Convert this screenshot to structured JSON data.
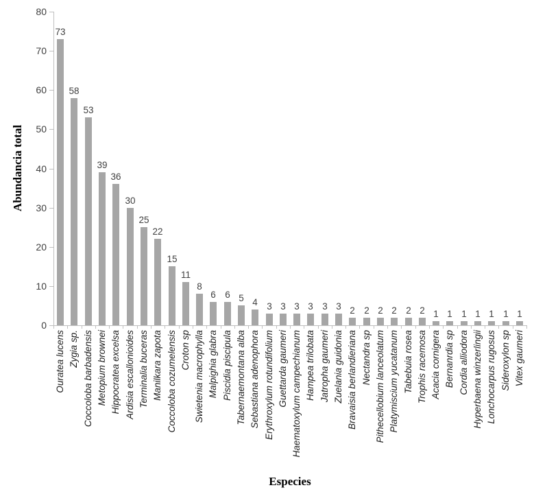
{
  "chart_data": {
    "type": "bar",
    "title": "",
    "xlabel": "Especies",
    "ylabel": "Abundancia total",
    "ylim": [
      0,
      80
    ],
    "yticks": [
      0,
      10,
      20,
      30,
      40,
      50,
      60,
      70,
      80
    ],
    "grid": false,
    "legend": false,
    "bar_color": "#a6a6a6",
    "axis_color": "#bfbfbf",
    "value_label_color": "#404040",
    "ytick_label_color": "#404040",
    "category_label_color": "#1a1a1a",
    "categories": [
      "Ouratea lucens",
      "Zygia sp.",
      "Coccoloba barbadensis",
      "Metopium brownei",
      "Hippocratea excelsa",
      "Ardisia escallonioides",
      "Terminalia buceras",
      "Manilkara zapota",
      "Coccoloba cozumelensis",
      "Croton sp",
      "Swietenia macrophylla",
      "Malpighia glabra",
      "Piscidia piscipula",
      "Tabernaemontana alba",
      "Sebastiana adenophora",
      "Erythroxylum rotundifolium",
      "Guettarda gaumeri",
      "Haematoxylum campechianum",
      "Hampea trilobata",
      "Jatropha gaumeri",
      "Zuelania guidonia",
      "Bravaisia berlandieriana",
      "Nectandra sp",
      "Pithecellobium lanceolatum",
      "Platymiscium yucatanum",
      "Tabebuia rosea",
      "Trophis racemosa",
      "Acacia cornigera",
      "Bernanrdia sp",
      "Cordia alliodora",
      "Hyperbaena winzerlingii",
      "Lonchocarpus rugosus",
      "Sideroxylon sp",
      "Vitex gaumeri"
    ],
    "values": [
      73,
      58,
      53,
      39,
      36,
      30,
      25,
      22,
      15,
      11,
      8,
      6,
      6,
      5,
      4,
      3,
      3,
      3,
      3,
      3,
      3,
      2,
      2,
      2,
      2,
      2,
      2,
      1,
      1,
      1,
      1,
      1,
      1,
      1
    ]
  }
}
